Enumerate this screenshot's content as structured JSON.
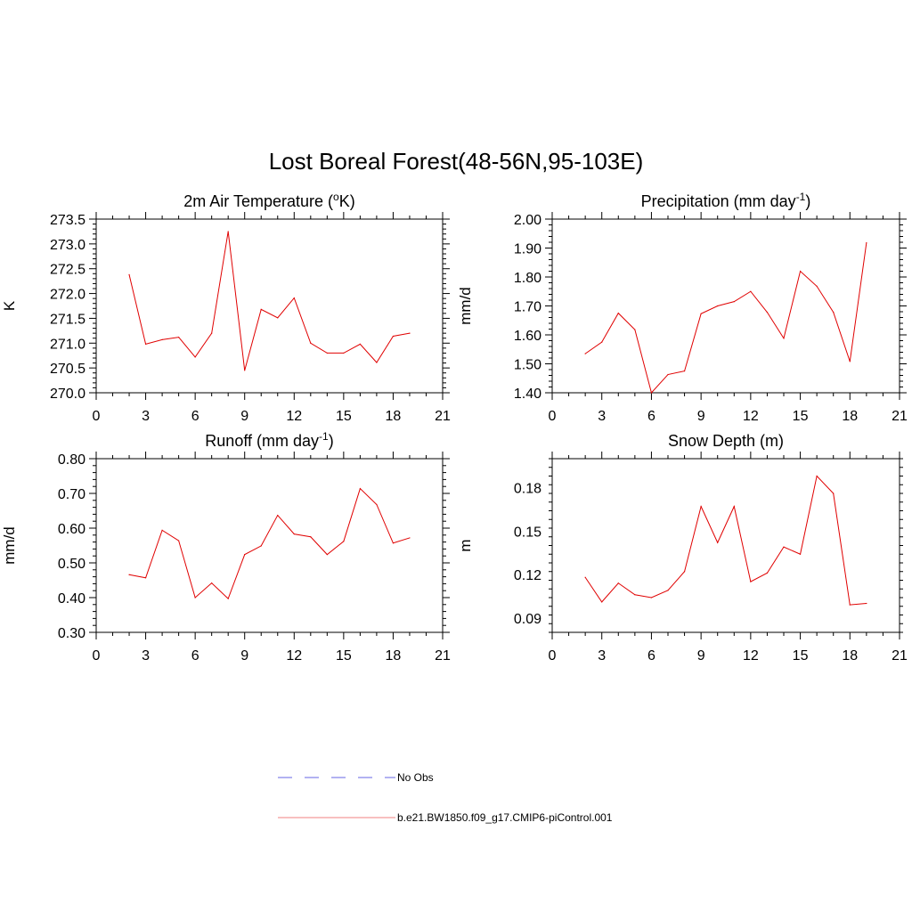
{
  "figure": {
    "title": "Lost Boreal Forest(48-56N,95-103E)"
  },
  "chart_data": [
    {
      "type": "line",
      "title": "2m Air Temperature (",
      "title_sup": "o",
      "title_post": "K)",
      "ylabel": "K",
      "xlim": [
        0,
        21
      ],
      "ylim": [
        270.0,
        273.5
      ],
      "xticks": [
        0,
        3,
        6,
        9,
        12,
        15,
        18,
        21
      ],
      "yticks": [
        270.0,
        270.5,
        271.0,
        271.5,
        272.0,
        272.5,
        273.0,
        273.5
      ],
      "ytick_labels": [
        "270.0",
        "270.5",
        "271.0",
        "271.5",
        "272.0",
        "272.5",
        "273.0",
        "273.5"
      ],
      "x": [
        2,
        3,
        4,
        5,
        6,
        7,
        8,
        9,
        10,
        11,
        12,
        13,
        14,
        15,
        16,
        17,
        18,
        19
      ],
      "series": [
        {
          "name": "b.e21.BW1850.f09_g17.CMIP6-piControl.001",
          "color": "#e00000",
          "values": [
            272.38,
            270.98,
            271.07,
            271.12,
            270.72,
            271.2,
            273.25,
            270.45,
            271.68,
            271.51,
            271.91,
            271.0,
            270.8,
            270.8,
            270.98,
            270.61,
            271.14,
            271.2
          ]
        }
      ]
    },
    {
      "type": "line",
      "title": "Precipitation (mm day",
      "title_sup": "-1",
      "title_post": ")",
      "ylabel": "mm/d",
      "xlim": [
        0,
        21
      ],
      "ylim": [
        1.4,
        2.0
      ],
      "xticks": [
        0,
        3,
        6,
        9,
        12,
        15,
        18,
        21
      ],
      "yticks": [
        1.4,
        1.5,
        1.6,
        1.7,
        1.8,
        1.9,
        2.0
      ],
      "ytick_labels": [
        "1.40",
        "1.50",
        "1.60",
        "1.70",
        "1.80",
        "1.90",
        "2.00"
      ],
      "x": [
        2,
        3,
        4,
        5,
        6,
        7,
        8,
        9,
        10,
        11,
        12,
        13,
        14,
        15,
        16,
        17,
        18,
        19
      ],
      "series": [
        {
          "name": "b.e21.BW1850.f09_g17.CMIP6-piControl.001",
          "color": "#e00000",
          "values": [
            1.535,
            1.575,
            1.675,
            1.618,
            1.4,
            1.463,
            1.475,
            1.673,
            1.7,
            1.715,
            1.75,
            1.678,
            1.588,
            1.82,
            1.768,
            1.678,
            1.508,
            1.918
          ]
        }
      ]
    },
    {
      "type": "line",
      "title": "Runoff (mm day",
      "title_sup": "-1",
      "title_post": ")",
      "ylabel": "mm/d",
      "xlim": [
        0,
        21
      ],
      "ylim": [
        0.3,
        0.8
      ],
      "xticks": [
        0,
        3,
        6,
        9,
        12,
        15,
        18,
        21
      ],
      "yticks": [
        0.3,
        0.4,
        0.5,
        0.6,
        0.7,
        0.8
      ],
      "ytick_labels": [
        "0.30",
        "0.40",
        "0.50",
        "0.60",
        "0.70",
        "0.80"
      ],
      "x": [
        2,
        3,
        4,
        5,
        6,
        7,
        8,
        9,
        10,
        11,
        12,
        13,
        14,
        15,
        16,
        17,
        18,
        19
      ],
      "series": [
        {
          "name": "b.e21.BW1850.f09_g17.CMIP6-piControl.001",
          "color": "#e00000",
          "values": [
            0.466,
            0.457,
            0.594,
            0.564,
            0.4,
            0.442,
            0.397,
            0.524,
            0.549,
            0.637,
            0.583,
            0.575,
            0.524,
            0.562,
            0.714,
            0.668,
            0.557,
            0.572
          ]
        }
      ]
    },
    {
      "type": "line",
      "title": "Snow Depth (m)",
      "title_sup": "",
      "title_post": "",
      "ylabel": "m",
      "xlim": [
        0,
        21
      ],
      "ylim": [
        0.08,
        0.2
      ],
      "xticks": [
        0,
        3,
        6,
        9,
        12,
        15,
        18,
        21
      ],
      "yticks": [
        0.09,
        0.12,
        0.15,
        0.18
      ],
      "ytick_labels": [
        "0.09",
        "0.12",
        "0.15",
        "0.18"
      ],
      "x": [
        2,
        3,
        4,
        5,
        6,
        7,
        8,
        9,
        10,
        11,
        12,
        13,
        14,
        15,
        16,
        17,
        18,
        19
      ],
      "series": [
        {
          "name": "b.e21.BW1850.f09_g17.CMIP6-piControl.001",
          "color": "#e00000",
          "values": [
            0.118,
            0.101,
            0.114,
            0.106,
            0.104,
            0.109,
            0.122,
            0.167,
            0.142,
            0.167,
            0.115,
            0.121,
            0.139,
            0.134,
            0.188,
            0.176,
            0.099,
            0.1
          ]
        }
      ]
    }
  ],
  "legend": {
    "entries": [
      {
        "label": "No Obs",
        "color": "#9999ee",
        "dash": "dashed"
      },
      {
        "label": "b.e21.BW1850.f09_g17.CMIP6-piControl.001",
        "color": "#e00000",
        "dash": "solid"
      }
    ]
  }
}
